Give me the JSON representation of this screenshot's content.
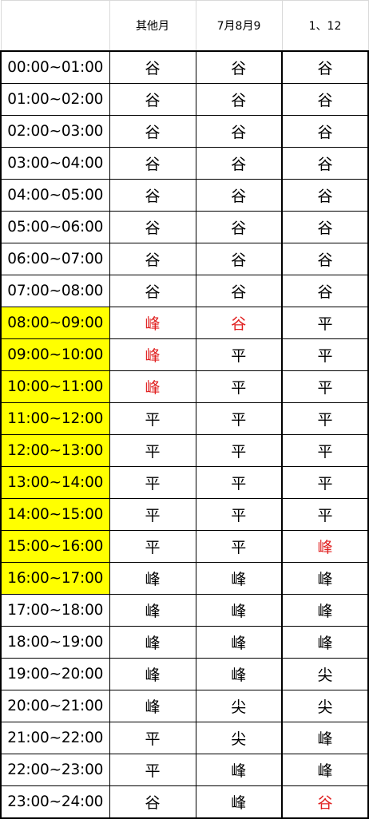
{
  "header": {
    "corner": "",
    "col1": "其他月",
    "col2": "7月8月9",
    "col3": "1、12"
  },
  "colors": {
    "highlight": "#ffff00",
    "alert_text": "#e02020",
    "border": "#000000"
  },
  "rows": [
    {
      "time": "00:00~01:00",
      "c1": "谷",
      "c2": "谷",
      "c3": "谷",
      "hl": false,
      "r1": false,
      "r2": false,
      "r3": false
    },
    {
      "time": "01:00~02:00",
      "c1": "谷",
      "c2": "谷",
      "c3": "谷",
      "hl": false,
      "r1": false,
      "r2": false,
      "r3": false
    },
    {
      "time": "02:00~03:00",
      "c1": "谷",
      "c2": "谷",
      "c3": "谷",
      "hl": false,
      "r1": false,
      "r2": false,
      "r3": false
    },
    {
      "time": "03:00~04:00",
      "c1": "谷",
      "c2": "谷",
      "c3": "谷",
      "hl": false,
      "r1": false,
      "r2": false,
      "r3": false
    },
    {
      "time": "04:00~05:00",
      "c1": "谷",
      "c2": "谷",
      "c3": "谷",
      "hl": false,
      "r1": false,
      "r2": false,
      "r3": false
    },
    {
      "time": "05:00~06:00",
      "c1": "谷",
      "c2": "谷",
      "c3": "谷",
      "hl": false,
      "r1": false,
      "r2": false,
      "r3": false
    },
    {
      "time": "06:00~07:00",
      "c1": "谷",
      "c2": "谷",
      "c3": "谷",
      "hl": false,
      "r1": false,
      "r2": false,
      "r3": false
    },
    {
      "time": "07:00~08:00",
      "c1": "谷",
      "c2": "谷",
      "c3": "谷",
      "hl": false,
      "r1": false,
      "r2": false,
      "r3": false
    },
    {
      "time": "08:00~09:00",
      "c1": "峰",
      "c2": "谷",
      "c3": "平",
      "hl": true,
      "r1": true,
      "r2": true,
      "r3": false
    },
    {
      "time": "09:00~10:00",
      "c1": "峰",
      "c2": "平",
      "c3": "平",
      "hl": true,
      "r1": true,
      "r2": false,
      "r3": false
    },
    {
      "time": "10:00~11:00",
      "c1": "峰",
      "c2": "平",
      "c3": "平",
      "hl": true,
      "r1": true,
      "r2": false,
      "r3": false
    },
    {
      "time": "11:00~12:00",
      "c1": "平",
      "c2": "平",
      "c3": "平",
      "hl": true,
      "r1": false,
      "r2": false,
      "r3": false
    },
    {
      "time": "12:00~13:00",
      "c1": "平",
      "c2": "平",
      "c3": "平",
      "hl": true,
      "r1": false,
      "r2": false,
      "r3": false
    },
    {
      "time": "13:00~14:00",
      "c1": "平",
      "c2": "平",
      "c3": "平",
      "hl": true,
      "r1": false,
      "r2": false,
      "r3": false
    },
    {
      "time": "14:00~15:00",
      "c1": "平",
      "c2": "平",
      "c3": "平",
      "hl": true,
      "r1": false,
      "r2": false,
      "r3": false
    },
    {
      "time": "15:00~16:00",
      "c1": "平",
      "c2": "平",
      "c3": "峰",
      "hl": true,
      "r1": false,
      "r2": false,
      "r3": true
    },
    {
      "time": "16:00~17:00",
      "c1": "峰",
      "c2": "峰",
      "c3": "峰",
      "hl": true,
      "r1": false,
      "r2": false,
      "r3": false
    },
    {
      "time": "17:00~18:00",
      "c1": "峰",
      "c2": "峰",
      "c3": "峰",
      "hl": false,
      "r1": false,
      "r2": false,
      "r3": false
    },
    {
      "time": "18:00~19:00",
      "c1": "峰",
      "c2": "峰",
      "c3": "峰",
      "hl": false,
      "r1": false,
      "r2": false,
      "r3": false
    },
    {
      "time": "19:00~20:00",
      "c1": "峰",
      "c2": "峰",
      "c3": "尖",
      "hl": false,
      "r1": false,
      "r2": false,
      "r3": false
    },
    {
      "time": "20:00~21:00",
      "c1": "峰",
      "c2": "尖",
      "c3": "尖",
      "hl": false,
      "r1": false,
      "r2": false,
      "r3": false
    },
    {
      "time": "21:00~22:00",
      "c1": "平",
      "c2": "尖",
      "c3": "峰",
      "hl": false,
      "r1": false,
      "r2": false,
      "r3": false
    },
    {
      "time": "22:00~23:00",
      "c1": "平",
      "c2": "峰",
      "c3": "峰",
      "hl": false,
      "r1": false,
      "r2": false,
      "r3": false
    },
    {
      "time": "23:00~24:00",
      "c1": "谷",
      "c2": "峰",
      "c3": "谷",
      "hl": false,
      "r1": false,
      "r2": false,
      "r3": true
    }
  ]
}
